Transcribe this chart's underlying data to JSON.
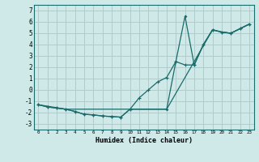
{
  "background_color": "#cfe8e8",
  "grid_color": "#b0cccc",
  "line_color": "#1a6b6b",
  "xlabel": "Humidex (Indice chaleur)",
  "xlim": [
    -0.5,
    23.5
  ],
  "ylim": [
    -3.5,
    7.5
  ],
  "xticks": [
    0,
    1,
    2,
    3,
    4,
    5,
    6,
    7,
    8,
    9,
    10,
    11,
    12,
    13,
    14,
    15,
    16,
    17,
    18,
    19,
    20,
    21,
    22,
    23
  ],
  "yticks": [
    -3,
    -2,
    -1,
    0,
    1,
    2,
    3,
    4,
    5,
    6,
    7
  ],
  "line1_x": [
    0,
    1,
    2,
    3,
    4,
    5,
    6,
    7,
    8,
    9,
    10,
    11,
    12,
    13,
    14,
    15,
    16,
    17,
    18,
    19,
    20,
    21,
    22,
    23
  ],
  "line1_y": [
    -1.3,
    -1.5,
    -1.6,
    -1.7,
    -1.9,
    -2.15,
    -2.2,
    -2.3,
    -2.35,
    -2.4,
    -1.7,
    -0.7,
    0.0,
    0.7,
    1.1,
    2.5,
    2.2,
    2.2,
    4.0,
    5.3,
    5.1,
    5.0,
    5.4,
    5.8
  ],
  "line2_x": [
    0,
    3,
    10,
    14,
    19,
    20,
    21,
    22,
    23
  ],
  "line2_y": [
    -1.3,
    -1.7,
    -1.7,
    -1.7,
    5.3,
    5.1,
    5.0,
    5.4,
    5.8
  ],
  "line3_x": [
    0,
    1,
    2,
    3,
    4,
    5,
    6,
    7,
    8,
    9,
    10,
    14,
    15,
    16,
    17,
    18,
    19,
    20,
    21,
    22,
    23
  ],
  "line3_y": [
    -1.3,
    -1.5,
    -1.6,
    -1.7,
    -1.9,
    -2.15,
    -2.2,
    -2.3,
    -2.35,
    -2.4,
    -1.7,
    -1.7,
    2.5,
    6.5,
    2.2,
    4.0,
    5.3,
    5.1,
    5.0,
    5.4,
    5.8
  ]
}
